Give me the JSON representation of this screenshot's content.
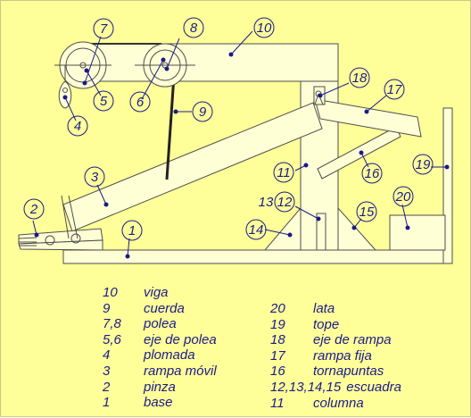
{
  "colors": {
    "background": "#ffff99",
    "part_fill": "#ffffd6",
    "part_stroke": "#4d4d4d",
    "label": "#1a1a8c",
    "dot": "#1a1a8c"
  },
  "callouts": [
    "1",
    "2",
    "3",
    "4",
    "5",
    "6",
    "7",
    "8",
    "9",
    "10",
    "11",
    "12",
    "13",
    "14",
    "15",
    "16",
    "17",
    "18",
    "19",
    "20"
  ],
  "legend_left": [
    {
      "key": "10",
      "label": "viga"
    },
    {
      "key": "9",
      "label": "cuerda"
    },
    {
      "key": "7,8",
      "label": "polea"
    },
    {
      "key": "5,6",
      "label": "eje de polea"
    },
    {
      "key": "4",
      "label": "plomada"
    },
    {
      "key": "3",
      "label": "rampa móvil"
    },
    {
      "key": "2",
      "label": "pinza"
    },
    {
      "key": "1",
      "label": "base"
    }
  ],
  "legend_right": [
    {
      "key": "20",
      "label": "lata"
    },
    {
      "key": "19",
      "label": "tope"
    },
    {
      "key": "18",
      "label": "eje de rampa"
    },
    {
      "key": "17",
      "label": "rampa fija"
    },
    {
      "key": "16",
      "label": "tornapuntas"
    },
    {
      "key": "12,13,14,15",
      "label": "escuadra",
      "key_width": "wide"
    },
    {
      "key": "11",
      "label": "columna"
    }
  ]
}
